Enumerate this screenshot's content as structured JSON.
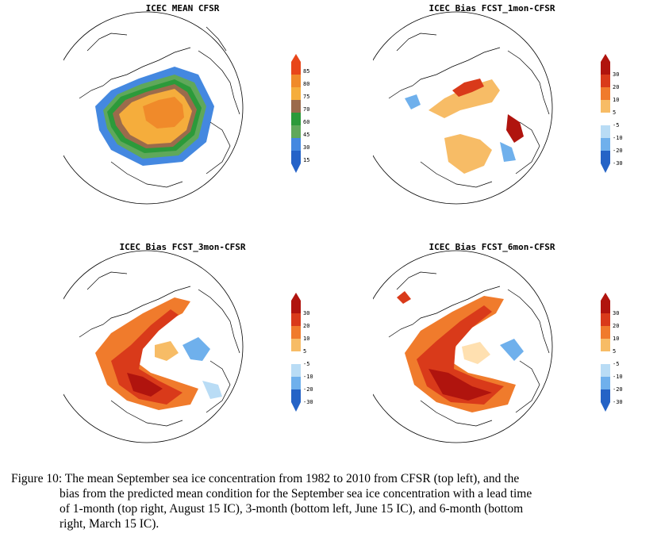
{
  "panels": [
    {
      "id": "p1",
      "title": "ICEC MEAN CFSR",
      "type": "mean",
      "colorbar": {
        "labels": [
          "85",
          "80",
          "75",
          "70",
          "60",
          "45",
          "30",
          "15"
        ],
        "colors": [
          "#e8461a",
          "#f08a2a",
          "#f5ad3c",
          "#9b6b4c",
          "#2c9a3a",
          "#5fa85a",
          "#4488e0",
          "#2462c8"
        ]
      }
    },
    {
      "id": "p2",
      "title": "ICEC Bias FCST_1mon-CFSR",
      "type": "bias",
      "intensity": "low",
      "colorbar": {
        "labels": [
          "30",
          "20",
          "10",
          "5",
          "-5",
          "-10",
          "-20",
          "-30"
        ]
      }
    },
    {
      "id": "p3",
      "title": "ICEC Bias FCST_3mon-CFSR",
      "type": "bias",
      "intensity": "mid",
      "colorbar": {
        "labels": [
          "30",
          "20",
          "10",
          "5",
          "-5",
          "-10",
          "-20",
          "-30"
        ]
      }
    },
    {
      "id": "p4",
      "title": "ICEC Bias FCST_6mon-CFSR",
      "type": "bias",
      "intensity": "high",
      "colorbar": {
        "labels": [
          "30",
          "20",
          "10",
          "5",
          "-5",
          "-10",
          "-20",
          "-30"
        ]
      }
    }
  ],
  "bias_colors": [
    "#b0140e",
    "#d93a1a",
    "#f07b2c",
    "#f7bc66",
    "#ffffff",
    "#b9dcf5",
    "#6fb0ec",
    "#3f86dc",
    "#2563c6"
  ],
  "caption": {
    "line1": "Figure 10: The mean September sea ice concentration from 1982 to 2010 from CFSR (top left), and the",
    "line2": "bias from the predicted mean condition for the September sea ice concentration with a lead time",
    "line3": "of 1-month (top right, August 15 IC), 3-month (bottom left, June 15 IC), and 6-month (bottom",
    "line4": "right, March 15 IC)."
  }
}
